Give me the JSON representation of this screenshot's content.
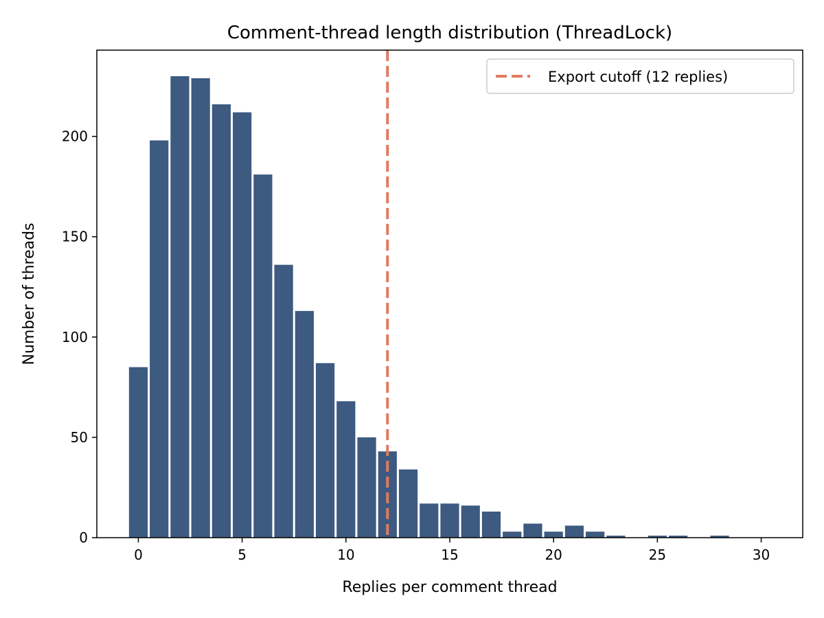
{
  "chart_data": {
    "type": "bar",
    "title": "Comment-thread length distribution (ThreadLock)",
    "xlabel": "Replies per comment thread",
    "ylabel": "Number of threads",
    "xlim": [
      -2,
      32
    ],
    "ylim": [
      0,
      243
    ],
    "xticks": [
      0,
      5,
      10,
      15,
      20,
      25,
      30
    ],
    "yticks": [
      0,
      50,
      100,
      150,
      200
    ],
    "x": [
      0,
      1,
      2,
      3,
      4,
      5,
      6,
      7,
      8,
      9,
      10,
      11,
      12,
      13,
      14,
      15,
      16,
      17,
      18,
      19,
      20,
      21,
      22,
      23,
      24,
      25,
      26,
      27,
      28,
      29,
      30
    ],
    "values": [
      85,
      198,
      230,
      229,
      216,
      212,
      181,
      136,
      113,
      87,
      68,
      50,
      43,
      34,
      17,
      17,
      16,
      13,
      3,
      7,
      3,
      6,
      3,
      1,
      0,
      1,
      1,
      0,
      1,
      0,
      0
    ],
    "bar_color": "#3d5a80",
    "cutoff": {
      "x": 12,
      "color": "#e07a5f",
      "label": "Export cutoff (12 replies)"
    },
    "legend_position": "top-right",
    "grid": false
  }
}
